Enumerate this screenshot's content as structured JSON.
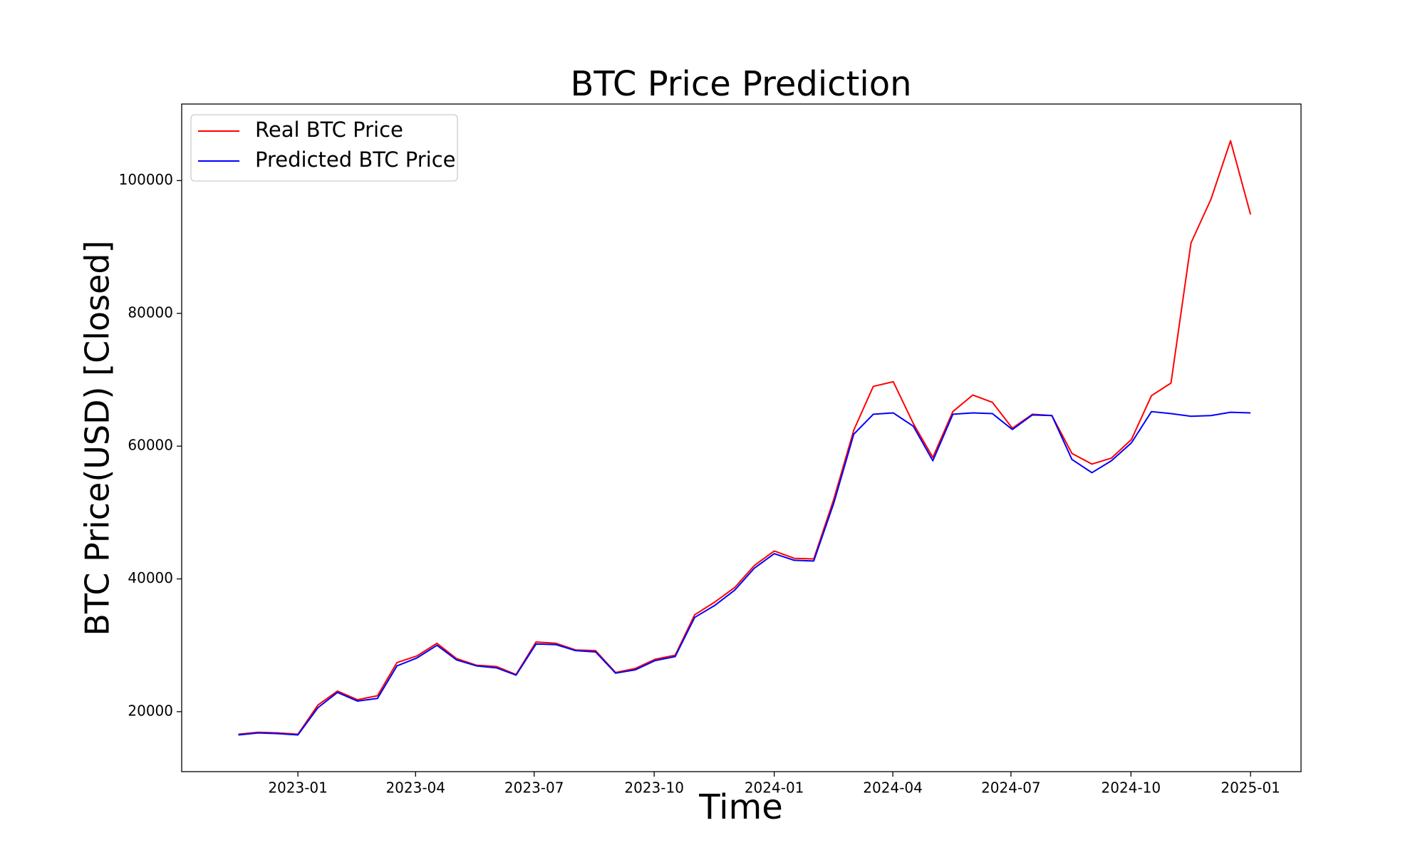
{
  "chart_data": {
    "type": "line",
    "title": "BTC Price Prediction",
    "x_label": "Time",
    "y_label": "BTC Price(USD) [Closed]",
    "x": [
      2022.875,
      2022.917,
      2022.958,
      2023.0,
      2023.042,
      2023.083,
      2023.125,
      2023.167,
      2023.208,
      2023.25,
      2023.292,
      2023.333,
      2023.375,
      2023.417,
      2023.458,
      2023.5,
      2023.542,
      2023.583,
      2023.625,
      2023.667,
      2023.708,
      2023.75,
      2023.792,
      2023.833,
      2023.875,
      2023.917,
      2023.958,
      2024.0,
      2024.042,
      2024.083,
      2024.125,
      2024.167,
      2024.208,
      2024.25,
      2024.292,
      2024.333,
      2024.375,
      2024.417,
      2024.458,
      2024.5,
      2024.542,
      2024.583,
      2024.625,
      2024.667,
      2024.708,
      2024.75,
      2024.792,
      2024.833,
      2024.875,
      2024.917,
      2024.958,
      2025.0
    ],
    "series": [
      {
        "name": "Real BTC Price",
        "color": "#ff0000",
        "values": [
          16600,
          16900,
          16800,
          16600,
          21000,
          23100,
          21800,
          22400,
          27400,
          28400,
          30300,
          28000,
          27000,
          26800,
          25600,
          30500,
          30300,
          29300,
          29200,
          25900,
          26500,
          27900,
          28500,
          34600,
          36500,
          38700,
          42000,
          44200,
          43100,
          43000,
          52000,
          62400,
          69000,
          69700,
          63400,
          58300,
          65200,
          67700,
          66600,
          62700,
          64800,
          64600,
          58900,
          57300,
          58200,
          61000,
          67600,
          69500,
          90600,
          97200,
          106000,
          94900
        ]
      },
      {
        "name": "Predicted BTC Price",
        "color": "#0000ff",
        "values": [
          16500,
          16800,
          16700,
          16500,
          20600,
          22900,
          21600,
          22000,
          26900,
          28100,
          30000,
          27800,
          26900,
          26600,
          25500,
          30200,
          30100,
          29200,
          29000,
          25800,
          26300,
          27700,
          28300,
          34200,
          36000,
          38300,
          41600,
          43800,
          42800,
          42700,
          51400,
          61800,
          64800,
          65000,
          63000,
          57800,
          64800,
          65000,
          64900,
          62500,
          64700,
          64600,
          58000,
          56000,
          57800,
          60500,
          65200,
          64900,
          64500,
          64600,
          65100,
          65000
        ]
      }
    ],
    "xlim": [
      2022.756,
      2025.106
    ],
    "xticks": [
      {
        "value": 2023.0,
        "label": "2023-01"
      },
      {
        "value": 2023.247,
        "label": "2023-04"
      },
      {
        "value": 2023.496,
        "label": "2023-07"
      },
      {
        "value": 2023.748,
        "label": "2023-10"
      },
      {
        "value": 2024.0,
        "label": "2024-01"
      },
      {
        "value": 2024.249,
        "label": "2024-04"
      },
      {
        "value": 2024.497,
        "label": "2024-07"
      },
      {
        "value": 2024.749,
        "label": "2024-10"
      },
      {
        "value": 2025.0,
        "label": "2025-01"
      }
    ],
    "ylim": [
      10970,
      111530
    ],
    "yticks": [
      20000,
      40000,
      60000,
      80000,
      100000
    ],
    "grid": false,
    "legend": "upper left"
  }
}
